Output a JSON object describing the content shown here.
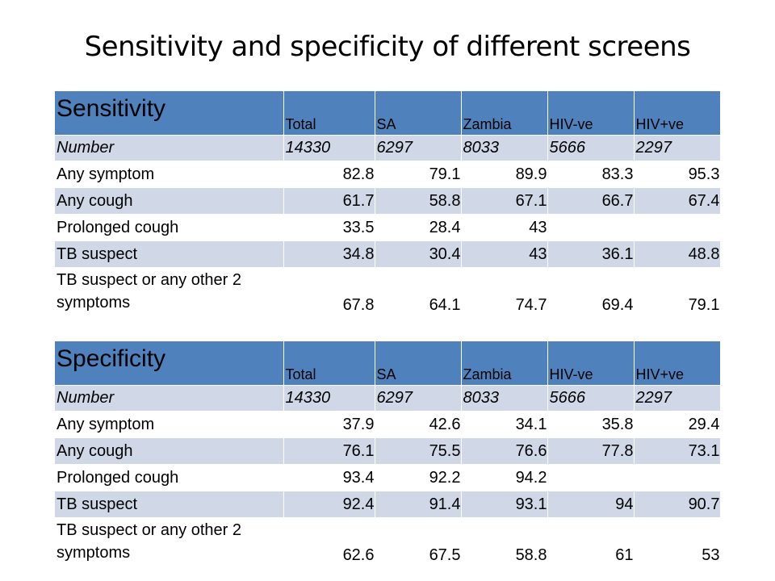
{
  "title": "Sensitivity and specificity of different screens",
  "columns": [
    "Total",
    "SA",
    "Zambia",
    "HIV-ve",
    "HIV+ve"
  ],
  "sensitivity": {
    "heading": "Sensitivity",
    "rows": [
      {
        "label": "Number",
        "values": [
          "14330",
          "6297",
          "8033",
          "5666",
          "2297"
        ]
      },
      {
        "label": "Any symptom",
        "values": [
          "82.8",
          "79.1",
          "89.9",
          "83.3",
          "95.3"
        ]
      },
      {
        "label": "Any cough",
        "values": [
          "61.7",
          "58.8",
          "67.1",
          "66.7",
          "67.4"
        ]
      },
      {
        "label": "Prolonged cough",
        "values": [
          "33.5",
          "28.4",
          "43",
          "",
          ""
        ]
      },
      {
        "label": "TB suspect",
        "values": [
          "34.8",
          "30.4",
          "43",
          "36.1",
          "48.8"
        ]
      },
      {
        "label": "TB suspect or any other 2 symptoms",
        "values": [
          "67.8",
          "64.1",
          "74.7",
          "69.4",
          "79.1"
        ]
      }
    ]
  },
  "specificity": {
    "heading": "Specificity",
    "rows": [
      {
        "label": "Number",
        "values": [
          "14330",
          "6297",
          "8033",
          "5666",
          "2297"
        ]
      },
      {
        "label": "Any symptom",
        "values": [
          "37.9",
          "42.6",
          "34.1",
          "35.8",
          "29.4"
        ]
      },
      {
        "label": "Any cough",
        "values": [
          "76.1",
          "75.5",
          "76.6",
          "77.8",
          "73.1"
        ]
      },
      {
        "label": "Prolonged cough",
        "values": [
          "93.4",
          "92.2",
          "94.2",
          "",
          ""
        ]
      },
      {
        "label": "TB suspect",
        "values": [
          "92.4",
          "91.4",
          "93.1",
          "94",
          "90.7"
        ]
      },
      {
        "label": "TB suspect or any other 2 symptoms",
        "values": [
          "62.6",
          "67.5",
          "58.8",
          "61",
          "53"
        ]
      }
    ]
  },
  "colors": {
    "header": "#4f81bd",
    "band": "#d0d8e8",
    "plain": "#ffffff"
  }
}
